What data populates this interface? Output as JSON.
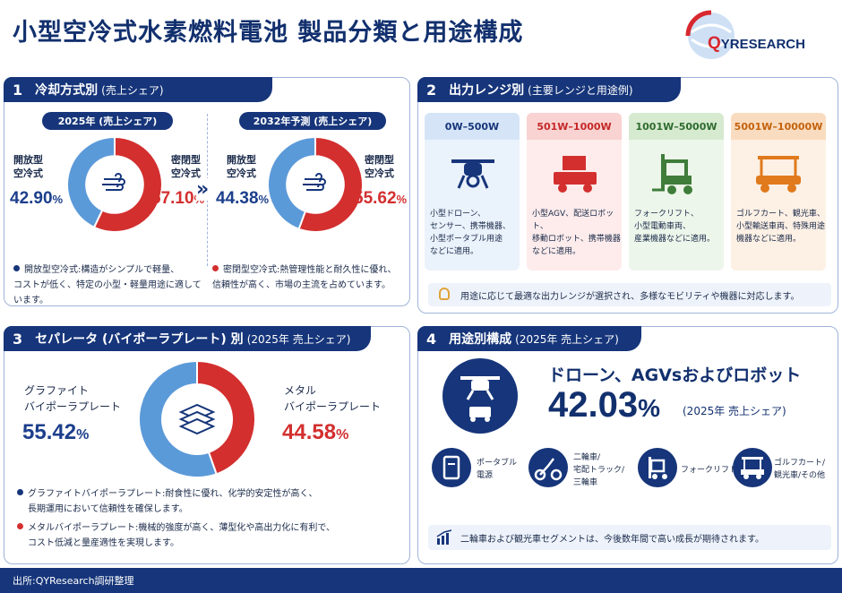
{
  "title": "小型空冷式水素燃料電池 製品分類と用途構成",
  "logo": {
    "q": "Q",
    "text": "YRESEARCH"
  },
  "panel1": {
    "num": "1",
    "title": "冷却方式別",
    "sub": "(売上シェア)",
    "pill_2025": "2025年 (売上シェア)",
    "pill_2032": "2032年予測 (売上シェア)",
    "open_label_a": "開放型",
    "open_label_b": "空冷式",
    "closed_label_a": "密閉型",
    "closed_label_b": "空冷式",
    "open_2025": "42.90",
    "closed_2025": "57.10",
    "open_2032": "44.38",
    "closed_2032": "55.62",
    "pct": "%",
    "note_open_1": "開放型空冷式:構造がシンプルで軽量、",
    "note_open_2": "コストが低く、特定の小型・軽量用途に適しています。",
    "note_closed_1": "密閉型空冷式:熱管理性能と耐久性に優れ、",
    "note_closed_2": "信頼性が高く、市場の主流を占めています。",
    "arrow": "»"
  },
  "panel2": {
    "num": "2",
    "title": "出力レンジ別",
    "sub": "(主要レンジと用途例)",
    "cards": [
      {
        "range": "0W–500W",
        "l1": "小型ドローン、",
        "l2": "センサー、携帯機器、",
        "l3": "小型ポータブル用途",
        "l4": "などに適用。"
      },
      {
        "range": "501W–1000W",
        "l1": "小型AGV、配送ロボット、",
        "l2": "移動ロボット、携帯機器",
        "l3": "などに適用。",
        "l4": ""
      },
      {
        "range": "1001W–5000W",
        "l1": "フォークリフト、",
        "l2": "小型電動車両、",
        "l3": "産業機器などに適用。",
        "l4": ""
      },
      {
        "range": "5001W–10000W",
        "l1": "ゴルフカート、観光車、",
        "l2": "小型輸送車両、特殊用途",
        "l3": "機器などに適用。",
        "l4": ""
      }
    ],
    "tip": "用途に応じて最適な出力レンジが選択され、多様なモビリティや機器に対応します。"
  },
  "panel3": {
    "num": "3",
    "title": "セパレータ (バイポーラプレート) 別",
    "sub": "(2025年 売上シェア)",
    "graphite_a": "グラファイト",
    "graphite_b": "バイポーラプレート",
    "graphite_val": "55.42",
    "metal_a": "メタル",
    "metal_b": "バイポーラプレート",
    "metal_val": "44.58",
    "pct": "%",
    "note_g_1": "グラファイトバイポーラプレート:耐食性に優れ、化学的安定性が高く、",
    "note_g_2": "長期運用において信頼性を確保します。",
    "note_m_1": "メタルバイポーラプレート:機械的強度が高く、薄型化や高出力化に有利で、",
    "note_m_2": "コスト低減と量産適性を実現します。"
  },
  "panel4": {
    "num": "4",
    "title": "用途別構成",
    "sub": "(2025年 売上シェア)",
    "headline": "ドローン、AGVsおよびロボット",
    "big_value": "42.03",
    "pct": "%",
    "year_note": "(2025年 売上シェア)",
    "apps": [
      {
        "l1": "ポータブル",
        "l2": "電源",
        "l3": ""
      },
      {
        "l1": "二輪車/",
        "l2": "宅配トラック/",
        "l3": "三輪車"
      },
      {
        "l1": "フォークリフト",
        "l2": "",
        "l3": ""
      },
      {
        "l1": "ゴルフカート/",
        "l2": "観光車/その他",
        "l3": ""
      }
    ],
    "tip": "二輪車および観光車セグメントは、今後数年間で高い成長が期待されます。"
  },
  "footer": "出所:QYResearch調研整理",
  "colors": {
    "navy": "#16357a",
    "blue": "#5b9ad9",
    "red": "#d32f2f"
  },
  "chart_data": [
    {
      "type": "pie",
      "title": "2025年 (売上シェア)",
      "categories": [
        "開放型空冷式",
        "密閉型空冷式"
      ],
      "values": [
        42.9,
        57.1
      ]
    },
    {
      "type": "pie",
      "title": "2032年予測 (売上シェア)",
      "categories": [
        "開放型空冷式",
        "密閉型空冷式"
      ],
      "values": [
        44.38,
        55.62
      ]
    },
    {
      "type": "pie",
      "title": "セパレータ (バイポーラプレート) 別 (2025年 売上シェア)",
      "categories": [
        "グラファイトバイポーラプレート",
        "メタルバイポーラプレート"
      ],
      "values": [
        55.42,
        44.58
      ]
    }
  ]
}
